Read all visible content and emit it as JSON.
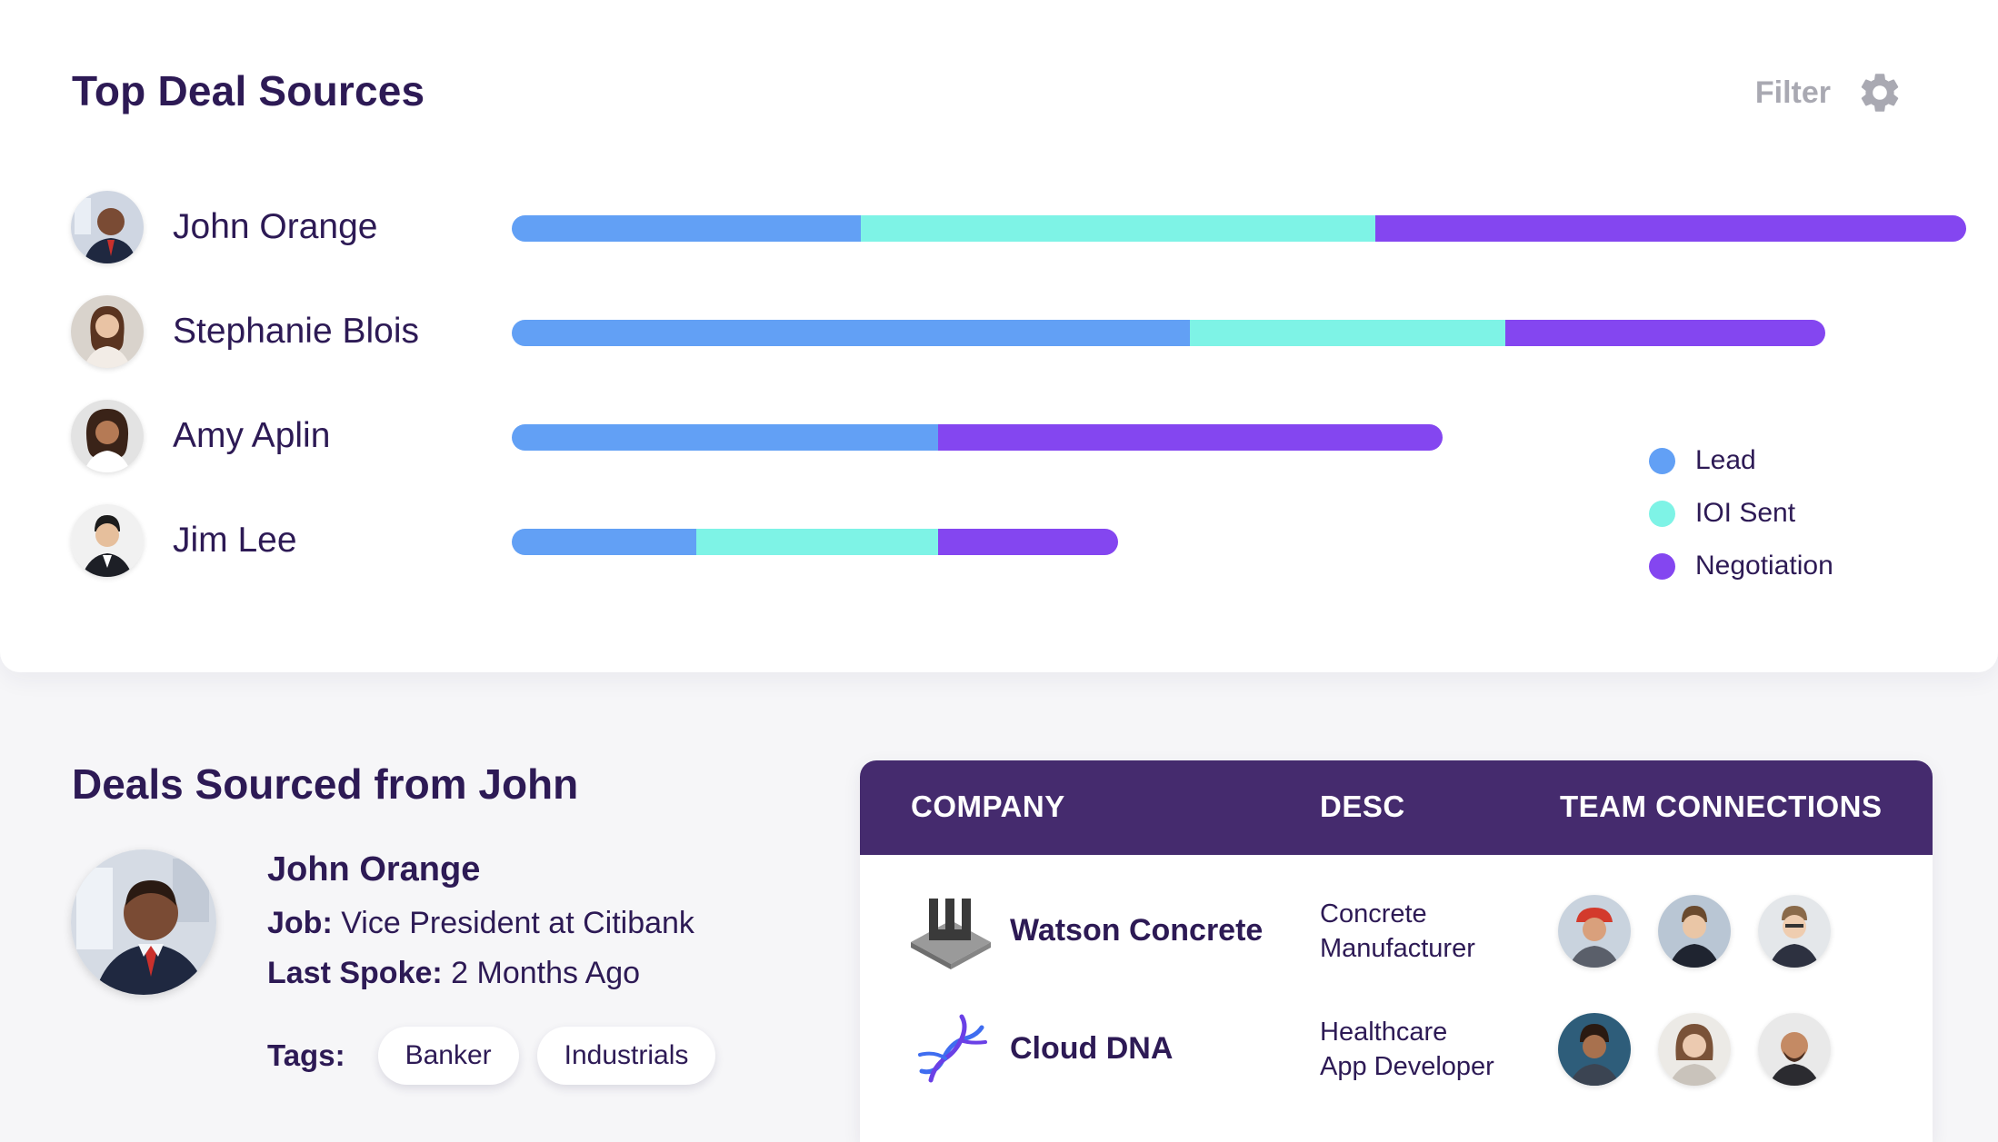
{
  "top_sources": {
    "title": "Top Deal Sources",
    "filter_label": "Filter",
    "rows": [
      {
        "name": "John Orange",
        "lead": 0.24,
        "ioi": 0.354,
        "negotiation": 0.406
      },
      {
        "name": "Stephanie Blois",
        "lead": 0.466,
        "ioi": 0.217,
        "negotiation": 0.22
      },
      {
        "name": "Amy Aplin",
        "lead": 0.293,
        "ioi": 0,
        "negotiation": 0.347
      },
      {
        "name": "Jim Lee",
        "lead": 0.127,
        "ioi": 0.166,
        "negotiation": 0.124
      }
    ],
    "legend": [
      {
        "label": "Lead",
        "color": "#62a0f5"
      },
      {
        "label": "IOI Sent",
        "color": "#7ef3e6"
      },
      {
        "label": "Negotiation",
        "color": "#8446f0"
      }
    ]
  },
  "deals": {
    "title": "Deals Sourced from John",
    "profile": {
      "name": "John Orange",
      "job_label": "Job:",
      "job_value": "Vice President at Citibank",
      "last_label": "Last Spoke:",
      "last_value": "2 Months Ago",
      "tags_label": "Tags:",
      "tags": [
        "Banker",
        "Industrials"
      ]
    },
    "table": {
      "headers": [
        "COMPANY",
        "DESC",
        "TEAM CONNECTIONS"
      ],
      "rows": [
        {
          "company": "Watson Concrete",
          "desc_line1": "Concrete",
          "desc_line2": "Manufacturer",
          "logo": "w-block-logo"
        },
        {
          "company": "Cloud DNA",
          "desc_line1": "Healthcare",
          "desc_line2": "App Developer",
          "logo": "dna-helix-logo"
        }
      ]
    }
  },
  "colors": {
    "primary_text": "#2d1a55",
    "table_header": "#452b6e",
    "filter_text": "#a9a9b2"
  }
}
